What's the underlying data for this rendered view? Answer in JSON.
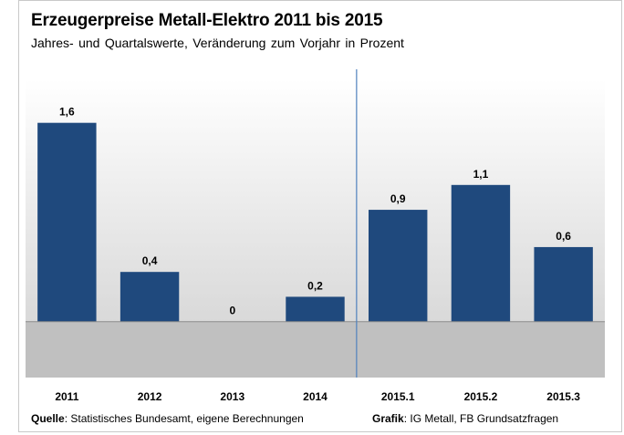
{
  "title": "Erzeugerpreise Metall-Elektro 2011 bis 2015",
  "subtitle": "Jahres- und Quartalswerte, Veränderung zum Vorjahr in Prozent",
  "footer": {
    "source_label": "Quelle",
    "source_text": ": Statistisches Bundesamt, eigene Berechnungen",
    "graphic_label": "Grafik",
    "graphic_text": ": IG Metall, FB Grundsatzfragen"
  },
  "colors": {
    "bar": "#1f497d",
    "plot_top": "#ffffff",
    "plot_bottom": "#d9d9d9",
    "negative_area": "#c0c0c0",
    "divider": "#4f81bd"
  },
  "chart_data": {
    "type": "bar",
    "title": "Erzeugerpreise Metall-Elektro 2011 bis 2015",
    "subtitle": "Jahres- und Quartalswerte, Veränderung zum Vorjahr in Prozent",
    "categories": [
      "2011",
      "2012",
      "2013",
      "2014",
      "2015.1",
      "2015.2",
      "2015.3"
    ],
    "values": [
      1.6,
      0.4,
      0,
      0.2,
      0.9,
      1.1,
      0.6
    ],
    "data_labels": [
      "1,6",
      "0,4",
      "0",
      "0,2",
      "0,9",
      "1,1",
      "0,6"
    ],
    "xlabel": "",
    "ylabel": "",
    "ylim": [
      -0.45,
      1.95
    ],
    "grid": false,
    "legend": "none",
    "divider_after_category": "2014"
  }
}
